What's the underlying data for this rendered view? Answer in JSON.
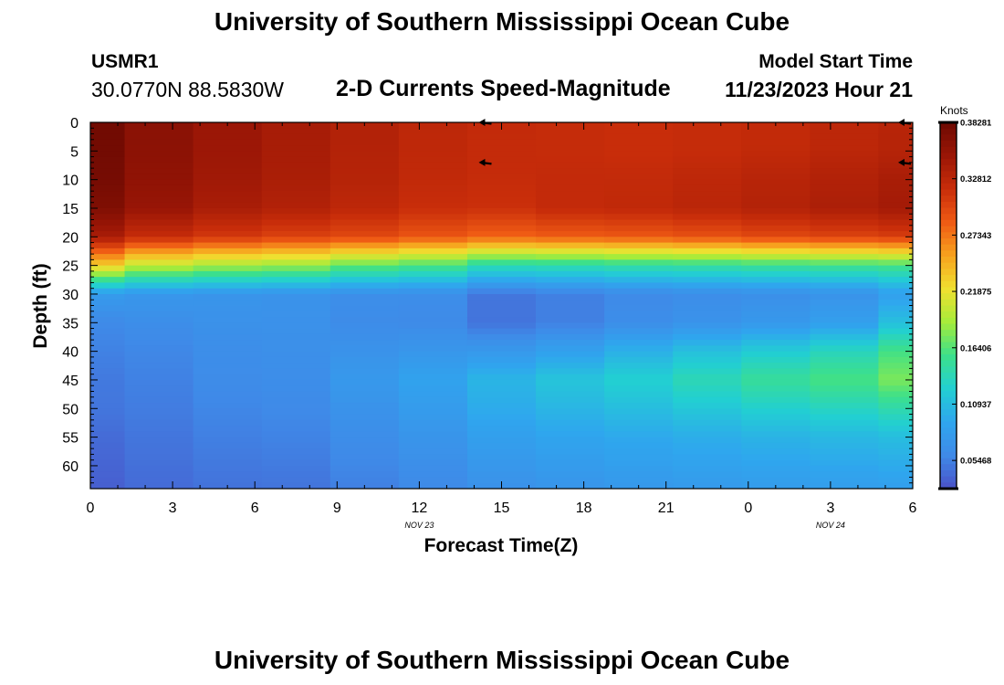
{
  "page": {
    "title": "University of Southern Mississippi Ocean Cube",
    "station_id": "USMR1",
    "coordinates": "30.0770N  88.5830W",
    "subtitle": "2-D Currents Speed-Magnitude",
    "model_start_label": "Model Start Time",
    "model_start_value": "11/23/2023 Hour 21",
    "footer_title": "University of Southern Mississippi Ocean Cube"
  },
  "chart_data": {
    "type": "heatmap",
    "title": "2-D Currents Speed-Magnitude",
    "xlabel": "Forecast Time(Z)",
    "ylabel": "Depth (ft)",
    "x_ticks": [
      "0",
      "3",
      "6",
      "9",
      "12",
      "15",
      "18",
      "21",
      "0",
      "3",
      "6"
    ],
    "x_range_hours": [
      0,
      30
    ],
    "date_labels": [
      {
        "text": "NOV 23",
        "hour": 12
      },
      {
        "text": "NOV 24",
        "hour": 27
      }
    ],
    "y_ticks": [
      "0",
      "5",
      "10",
      "15",
      "20",
      "25",
      "30",
      "35",
      "40",
      "45",
      "50",
      "55",
      "60"
    ],
    "ylim": [
      0,
      64
    ],
    "colorbar": {
      "title": "Knots",
      "min": 0.02734,
      "max": 0.3828,
      "labels": [
        "0.38281",
        "0.32812",
        "0.27343",
        "0.21875",
        "0.16406",
        "0.10937",
        "0.05468"
      ],
      "colors": [
        "#4a52c8",
        "#3f8ae8",
        "#2fa6ee",
        "#22cfd2",
        "#3de08a",
        "#a6ec3a",
        "#f0e030",
        "#f7a21e",
        "#ef5a14",
        "#c82d0a",
        "#9a1606",
        "#6e0a02"
      ]
    },
    "column_hours": [
      0,
      2.5,
      5,
      7.5,
      10,
      12.5,
      15,
      17.5,
      20,
      22.5,
      25,
      27.5,
      30
    ],
    "column_profiles": [
      {
        "hour": 0,
        "speeds": [
          0.38,
          0.379,
          0.377,
          0.37,
          0.34,
          0.23,
          0.08,
          0.06,
          0.055,
          0.05,
          0.048,
          0.042,
          0.035
        ]
      },
      {
        "hour": 2.5,
        "speeds": [
          0.362,
          0.361,
          0.358,
          0.352,
          0.32,
          0.2,
          0.075,
          0.064,
          0.058,
          0.055,
          0.052,
          0.048,
          0.042
        ]
      },
      {
        "hour": 5,
        "speeds": [
          0.35,
          0.349,
          0.346,
          0.34,
          0.31,
          0.19,
          0.072,
          0.068,
          0.064,
          0.062,
          0.058,
          0.054,
          0.046
        ]
      },
      {
        "hour": 7.5,
        "speeds": [
          0.342,
          0.341,
          0.339,
          0.334,
          0.303,
          0.185,
          0.07,
          0.068,
          0.066,
          0.064,
          0.06,
          0.056,
          0.047
        ]
      },
      {
        "hour": 10,
        "speeds": [
          0.334,
          0.333,
          0.331,
          0.326,
          0.298,
          0.168,
          0.065,
          0.062,
          0.07,
          0.076,
          0.07,
          0.064,
          0.054
        ]
      },
      {
        "hour": 12.5,
        "speeds": [
          0.326,
          0.325,
          0.323,
          0.318,
          0.29,
          0.16,
          0.064,
          0.061,
          0.074,
          0.088,
          0.08,
          0.072,
          0.06
        ]
      },
      {
        "hour": 15,
        "speeds": [
          0.322,
          0.321,
          0.32,
          0.316,
          0.282,
          0.14,
          0.048,
          0.047,
          0.076,
          0.104,
          0.096,
          0.084,
          0.068
        ]
      },
      {
        "hour": 17.5,
        "speeds": [
          0.32,
          0.32,
          0.322,
          0.322,
          0.286,
          0.142,
          0.054,
          0.054,
          0.086,
          0.116,
          0.104,
          0.09,
          0.072
        ]
      },
      {
        "hour": 20,
        "speeds": [
          0.318,
          0.318,
          0.322,
          0.324,
          0.288,
          0.146,
          0.06,
          0.064,
          0.1,
          0.126,
          0.11,
          0.094,
          0.076
        ]
      },
      {
        "hour": 22.5,
        "speeds": [
          0.32,
          0.32,
          0.326,
          0.328,
          0.292,
          0.148,
          0.064,
          0.07,
          0.112,
          0.138,
          0.118,
          0.098,
          0.078
        ]
      },
      {
        "hour": 25,
        "speeds": [
          0.322,
          0.323,
          0.33,
          0.333,
          0.298,
          0.152,
          0.066,
          0.076,
          0.122,
          0.15,
          0.126,
          0.102,
          0.08
        ]
      },
      {
        "hour": 27.5,
        "speeds": [
          0.326,
          0.327,
          0.334,
          0.338,
          0.302,
          0.155,
          0.07,
          0.084,
          0.134,
          0.16,
          0.132,
          0.106,
          0.082
        ]
      },
      {
        "hour": 30,
        "speeds": [
          0.33,
          0.331,
          0.34,
          0.344,
          0.306,
          0.158,
          0.084,
          0.112,
          0.158,
          0.176,
          0.142,
          0.11,
          0.084
        ]
      }
    ],
    "profile_depths_ft": [
      0,
      5,
      10,
      15,
      20,
      25,
      30,
      35,
      40,
      45,
      50,
      55,
      64
    ],
    "direction_arrows": [
      {
        "hour": 14.5,
        "depth": 0
      },
      {
        "hour": 14.5,
        "depth": 7
      },
      {
        "hour": 29.8,
        "depth": 0
      },
      {
        "hour": 29.8,
        "depth": 7
      }
    ]
  }
}
